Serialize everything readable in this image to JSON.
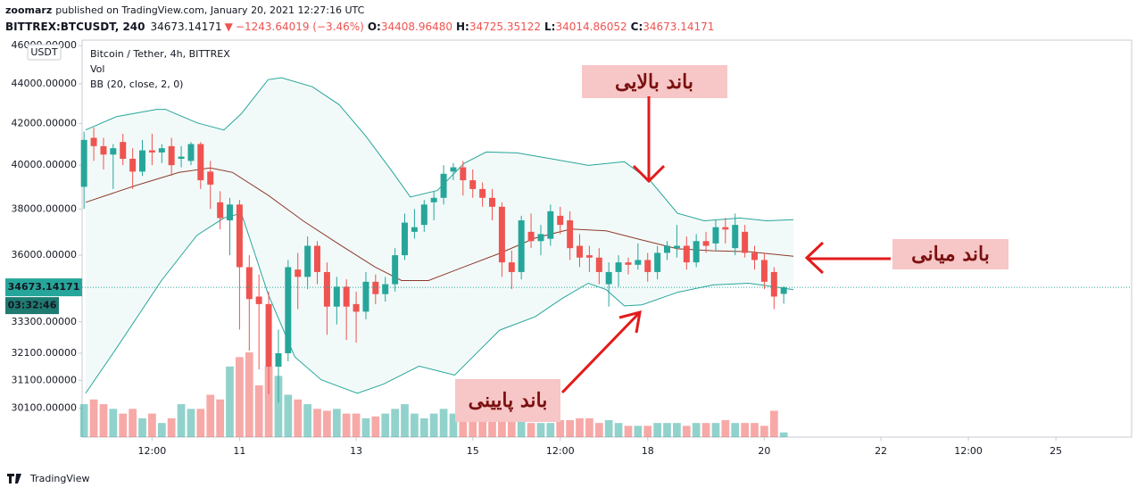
{
  "header": {
    "publisher": "zoomarz",
    "published": "published on TradingView.com, January 20, 2021 12:27:16 UTC",
    "symbol": "BITTREX:BTCUSDT, 240",
    "last": "34673.14171",
    "arrow": "▼",
    "change": "−1243.64019 (−3.46%)",
    "ohlc": [
      {
        "label": "O:",
        "value": "34408.96480"
      },
      {
        "label": "H:",
        "value": "34725.35122"
      },
      {
        "label": "L:",
        "value": "34014.86052"
      },
      {
        "label": "C:",
        "value": "34673.14171"
      }
    ]
  },
  "legend": {
    "title": "Bitcoin / Tether, 4h, BITTREX",
    "vol": "Vol",
    "bb": "BB (20, close, 2, 0)"
  },
  "currency": "USDT",
  "footer": "TradingView",
  "chart_data": {
    "type": "candlestick",
    "log_scale": true,
    "grid": false,
    "up_color": "#26a69a",
    "down_color": "#ef5350",
    "band_color": "#26a69a",
    "middle_color": "#8d3b2b",
    "xlim": [
      8.3,
      26.3
    ],
    "xticks": [
      {
        "value": 9.5,
        "label": "12:00"
      },
      11,
      13,
      15,
      {
        "value": 16.5,
        "label": "12:00"
      },
      18,
      20,
      22,
      {
        "value": 23.5,
        "label": "12:00"
      },
      25
    ],
    "ylim": [
      29100,
      46300
    ],
    "yticks": [
      {
        "value": 46000,
        "label": "46000.00000"
      },
      {
        "value": 44000,
        "label": "44000.00000"
      },
      {
        "value": 42000,
        "label": "42000.00000"
      },
      {
        "value": 40000,
        "label": "40000.00000"
      },
      {
        "value": 38000,
        "label": "38000.00000"
      },
      {
        "value": 36000,
        "label": "36000.00000"
      },
      {
        "value": 33300,
        "label": "33300.00000"
      },
      {
        "value": 32100,
        "label": "32100.00000"
      },
      {
        "value": 31100,
        "label": "31100.00000"
      },
      {
        "value": 30100,
        "label": "30100.00000"
      }
    ],
    "last_price": {
      "value": 34673.14171,
      "label": "34673.14171"
    },
    "countdown": "03:32:46",
    "x": [
      8.333,
      8.5,
      8.667,
      8.833,
      9,
      9.167,
      9.333,
      9.5,
      9.667,
      9.833,
      10,
      10.167,
      10.333,
      10.5,
      10.667,
      10.833,
      11,
      11.167,
      11.333,
      11.5,
      11.667,
      11.833,
      12,
      12.167,
      12.333,
      12.5,
      12.667,
      12.833,
      13,
      13.167,
      13.333,
      13.5,
      13.667,
      13.833,
      14,
      14.167,
      14.333,
      14.5,
      14.667,
      14.833,
      15,
      15.167,
      15.333,
      15.5,
      15.667,
      15.833,
      16,
      16.167,
      16.333,
      16.5,
      16.667,
      16.833,
      17,
      17.167,
      17.333,
      17.5,
      17.667,
      17.833,
      18,
      18.167,
      18.333,
      18.5,
      18.667,
      18.833,
      19,
      19.167,
      19.333,
      19.5,
      19.667,
      19.833,
      20,
      20.167,
      20.333
    ],
    "open": [
      39000,
      41300,
      40900,
      40500,
      41100,
      40300,
      39700,
      40700,
      40600,
      40900,
      40300,
      40200,
      41000,
      39700,
      38300,
      37500,
      38200,
      35500,
      34300,
      34000,
      31600,
      32100,
      35400,
      35100,
      36400,
      35300,
      33900,
      34700,
      34000,
      33700,
      34900,
      34400,
      34800,
      36000,
      37000,
      37300,
      38300,
      38500,
      39700,
      39900,
      39300,
      38900,
      38500,
      38100,
      35700,
      35300,
      37000,
      36600,
      36700,
      37700,
      37500,
      36400,
      36000,
      35900,
      34800,
      35300,
      35700,
      35600,
      35800,
      35300,
      36100,
      36300,
      36400,
      35700,
      36600,
      36500,
      37200,
      36300,
      37000,
      36100,
      35800,
      35300,
      34408.9648
    ],
    "high": [
      41600,
      41800,
      41300,
      41000,
      41500,
      40800,
      41200,
      41500,
      41000,
      41300,
      40900,
      41100,
      41100,
      40200,
      38800,
      38500,
      38400,
      36000,
      35200,
      34500,
      33000,
      35800,
      36100,
      36800,
      36600,
      35700,
      35100,
      35000,
      34500,
      35300,
      35200,
      35100,
      36300,
      37800,
      38000,
      38400,
      38800,
      40000,
      40100,
      40200,
      39800,
      39200,
      38900,
      38300,
      36200,
      37700,
      37800,
      37300,
      38200,
      38100,
      37900,
      36900,
      36400,
      36300,
      35700,
      36000,
      35900,
      36500,
      36100,
      36400,
      36600,
      37300,
      36800,
      36900,
      37000,
      37500,
      37600,
      37800,
      37300,
      36400,
      36100,
      35500,
      34725.35122
    ],
    "low": [
      38000,
      40200,
      39800,
      38900,
      40000,
      38900,
      39500,
      40000,
      40100,
      39500,
      39900,
      40000,
      38900,
      38000,
      37100,
      36000,
      33000,
      32200,
      31500,
      30600,
      30300,
      31800,
      33800,
      34600,
      34800,
      32800,
      33200,
      32600,
      32500,
      33400,
      34000,
      34100,
      34500,
      35800,
      36700,
      37000,
      37500,
      38200,
      39300,
      38600,
      38500,
      38100,
      37500,
      35100,
      34600,
      35000,
      36300,
      36000,
      36400,
      36900,
      35800,
      35500,
      35300,
      34800,
      33900,
      34700,
      35200,
      35400,
      34900,
      35000,
      35800,
      35900,
      35400,
      35500,
      36100,
      36200,
      36500,
      36000,
      35900,
      35400,
      34600,
      33800,
      34014.86052
    ],
    "close": [
      41200,
      40900,
      40500,
      40800,
      40300,
      39700,
      40700,
      40600,
      40800,
      40000,
      40400,
      41000,
      39300,
      39100,
      37600,
      38200,
      35500,
      34200,
      34000,
      31600,
      32100,
      35500,
      35100,
      36400,
      35300,
      33900,
      34700,
      33900,
      33700,
      34900,
      34400,
      34800,
      36000,
      37400,
      37200,
      38200,
      38500,
      39600,
      39900,
      39300,
      38900,
      38500,
      38100,
      35700,
      35300,
      37500,
      36600,
      36900,
      37900,
      37300,
      36300,
      35900,
      35900,
      35300,
      35300,
      35700,
      35600,
      35800,
      35300,
      36100,
      36400,
      36400,
      35700,
      36600,
      36400,
      37200,
      37100,
      37300,
      36100,
      35800,
      34900,
      34300,
      34673.14171
    ],
    "volume": [
      35,
      40,
      35,
      30,
      25,
      30,
      20,
      25,
      15,
      20,
      35,
      30,
      30,
      45,
      40,
      75,
      85,
      90,
      55,
      75,
      65,
      45,
      40,
      35,
      30,
      28,
      30,
      25,
      25,
      20,
      22,
      25,
      30,
      35,
      25,
      20,
      25,
      30,
      25,
      25,
      20,
      20,
      22,
      30,
      20,
      22,
      15,
      15,
      15,
      18,
      18,
      20,
      20,
      15,
      18,
      15,
      12,
      12,
      12,
      15,
      15,
      15,
      12,
      15,
      15,
      15,
      18,
      15,
      15,
      15,
      12,
      28,
      5
    ],
    "bb": {
      "upper": {
        "x": [
          8.36,
          8.89,
          9.58,
          9.73,
          10.27,
          10.73,
          11.03,
          11.49,
          11.72,
          12.25,
          12.71,
          13.17,
          13.63,
          13.93,
          14.39,
          14.85,
          15.23,
          15.76,
          16.37,
          16.98,
          17.6,
          18.05,
          18.51,
          18.97,
          19.58,
          20.04,
          20.5
        ],
        "values": [
          41680,
          42340,
          42700,
          42700,
          42030,
          41680,
          42480,
          44210,
          44310,
          43840,
          42930,
          41370,
          39660,
          38540,
          38830,
          40080,
          40620,
          40580,
          40290,
          39990,
          40160,
          39260,
          37810,
          37480,
          37600,
          37480,
          37530
        ]
      },
      "middle": {
        "x": [
          8.36,
          9.2,
          9.96,
          10.5,
          10.88,
          11.49,
          12.1,
          12.71,
          13.32,
          13.78,
          14.24,
          14.85,
          15.46,
          16.07,
          16.68,
          17.29,
          17.9,
          18.51,
          19.12,
          19.73,
          20.5
        ],
        "values": [
          38300,
          39040,
          39660,
          39870,
          39660,
          38620,
          37460,
          36460,
          35510,
          34950,
          34950,
          35510,
          36080,
          36730,
          37120,
          37040,
          36650,
          36270,
          36190,
          36150,
          35960
        ]
      },
      "lower": {
        "x": [
          8.36,
          8.89,
          9.66,
          10.27,
          10.73,
          11.03,
          11.26,
          11.49,
          11.95,
          12.4,
          13.02,
          13.47,
          14.08,
          14.69,
          15,
          15.46,
          16.07,
          16.53,
          16.98,
          17.29,
          17.6,
          17.9,
          18.51,
          19.12,
          19.73,
          20.19,
          20.5
        ],
        "values": [
          30630,
          32290,
          34950,
          36850,
          37600,
          37810,
          36080,
          34400,
          31960,
          31120,
          30630,
          30960,
          31620,
          31290,
          31960,
          32980,
          33500,
          34220,
          34840,
          34580,
          33930,
          33970,
          34470,
          34770,
          34840,
          34690,
          34580
        ]
      }
    },
    "annotations": [
      {
        "text": "باند بالایی"
      },
      {
        "text": "باند میانی"
      },
      {
        "text": "باند پایینی"
      }
    ]
  }
}
